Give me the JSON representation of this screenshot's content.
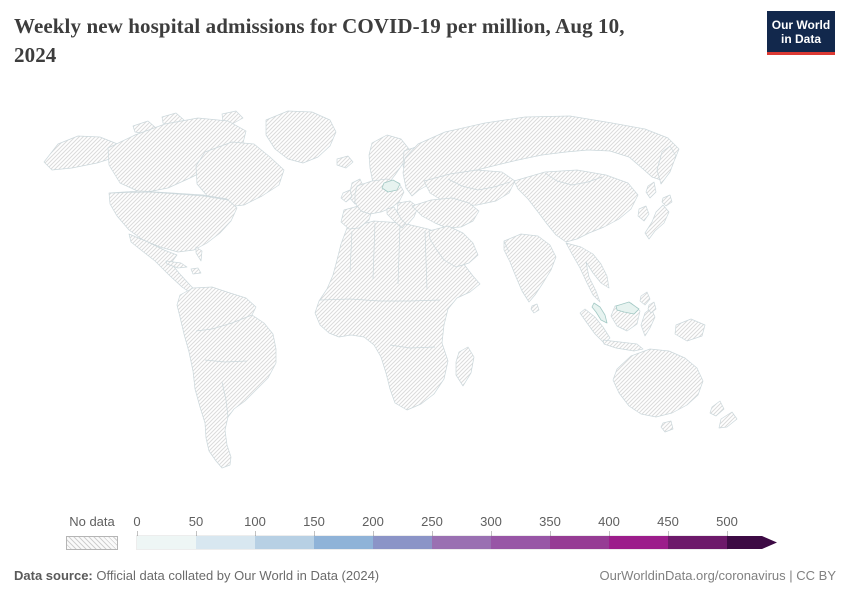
{
  "header": {
    "title_lines": [
      "Weekly new hospital admissions for COVID-19 per million, Aug 10,",
      "2024"
    ],
    "logo": {
      "line1": "Our World",
      "line2": "in Data",
      "bg": "#12284c",
      "accent": "#dc3a34"
    }
  },
  "map": {
    "highlight_fill": "#e7f3f0",
    "highlight_stroke": "#a3c9c5"
  },
  "legend": {
    "no_data_label": "No data",
    "ticks": [
      "0",
      "50",
      "100",
      "150",
      "200",
      "250",
      "300",
      "350",
      "400",
      "450",
      "500"
    ],
    "bin_colors": [
      "#eef6f5",
      "#d8e7f0",
      "#b7d0e4",
      "#8fb3d8",
      "#8b94c7",
      "#9a70b2",
      "#9856a6",
      "#963c94",
      "#9c1d8b",
      "#6d196a"
    ],
    "arrow_color": "#3d0a44"
  },
  "footer": {
    "source_label": "Data source:",
    "source_text": " Official data collated by Our World in Data (2024)",
    "link_text": "OurWorldinData.org/coronavirus | CC BY"
  },
  "chart_data": {
    "type": "choropleth-map",
    "title": "Weekly new hospital admissions for COVID-19 per million, Aug 10, 2024",
    "date": "Aug 10, 2024",
    "colorbar": {
      "tick_values": [
        0,
        50,
        100,
        150,
        200,
        250,
        300,
        350,
        400,
        450,
        500
      ],
      "open_ended_above_500": true,
      "bin_colors": [
        "#eef6f5",
        "#d8e7f0",
        "#b7d0e4",
        "#8fb3d8",
        "#8b94c7",
        "#9a70b2",
        "#9856a6",
        "#963c94",
        "#9c1d8b",
        "#6d196a",
        "#3d0a44"
      ],
      "no_data_style": "diagonal hatching"
    },
    "regions_with_data": [
      {
        "region": "Czechia (small Central European country)",
        "bin": "0-50"
      },
      {
        "region": "Malaysia (peninsula and northern Borneo)",
        "bin": "0-50"
      }
    ],
    "all_other_countries": "No data"
  }
}
